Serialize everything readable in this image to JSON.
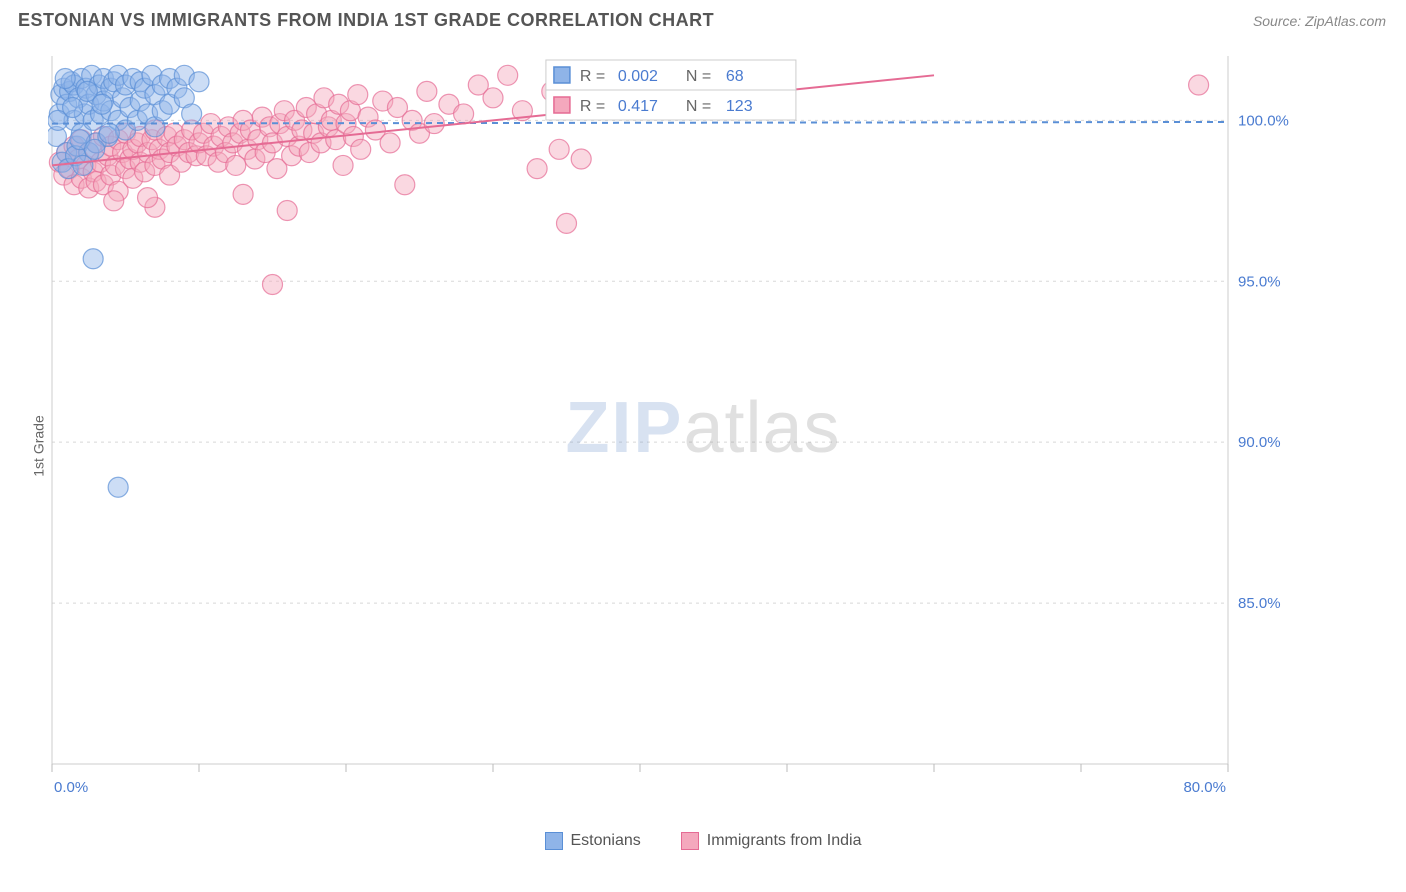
{
  "header": {
    "title": "ESTONIAN VS IMMIGRANTS FROM INDIA 1ST GRADE CORRELATION CHART",
    "source": "Source: ZipAtlas.com"
  },
  "y_axis_label": "1st Grade",
  "watermark": {
    "zip": "ZIP",
    "atlas": "atlas"
  },
  "chart": {
    "type": "scatter",
    "background_color": "#ffffff",
    "grid_color": "#d8d8d8",
    "axis_color": "#cccccc",
    "tick_color": "#bbbbbb",
    "tick_label_color": "#4a7bd0",
    "xlim": [
      0,
      80
    ],
    "ylim": [
      80,
      102
    ],
    "x_ticks": [
      0,
      10,
      20,
      30,
      40,
      50,
      60,
      70,
      80
    ],
    "x_tick_labels": [
      "0.0%",
      "",
      "",
      "",
      "",
      "",
      "",
      "",
      "80.0%"
    ],
    "y_ticks": [
      85,
      90,
      95,
      100
    ],
    "y_tick_labels": [
      "85.0%",
      "90.0%",
      "95.0%",
      "100.0%"
    ],
    "marker_radius": 10,
    "marker_opacity": 0.45,
    "series_a": {
      "name": "Estonians",
      "color_fill": "#8fb4e8",
      "color_stroke": "#5a8fd6",
      "R": "0.002",
      "N": "68",
      "trend": {
        "x1": 0,
        "y1": 99.9,
        "x2": 80,
        "y2": 99.95,
        "color": "#5a8fd6",
        "dash": "6 5",
        "width": 2
      },
      "points": [
        [
          0.3,
          99.5
        ],
        [
          0.5,
          100.2
        ],
        [
          0.6,
          100.8
        ],
        [
          0.8,
          101.0
        ],
        [
          1.0,
          100.5
        ],
        [
          1.0,
          99.0
        ],
        [
          1.2,
          100.9
        ],
        [
          1.3,
          101.2
        ],
        [
          1.5,
          100.0
        ],
        [
          1.5,
          101.1
        ],
        [
          1.7,
          99.2
        ],
        [
          1.8,
          100.7
        ],
        [
          2.0,
          101.3
        ],
        [
          2.0,
          99.6
        ],
        [
          2.2,
          100.2
        ],
        [
          2.3,
          101.0
        ],
        [
          2.5,
          100.5
        ],
        [
          2.5,
          99.0
        ],
        [
          2.7,
          101.4
        ],
        [
          2.8,
          100.0
        ],
        [
          3.0,
          100.8
        ],
        [
          3.0,
          99.3
        ],
        [
          3.2,
          101.1
        ],
        [
          3.3,
          100.2
        ],
        [
          3.5,
          101.3
        ],
        [
          3.5,
          100.6
        ],
        [
          3.8,
          99.5
        ],
        [
          4.0,
          101.0
        ],
        [
          4.0,
          100.3
        ],
        [
          4.2,
          101.2
        ],
        [
          4.5,
          100.0
        ],
        [
          4.5,
          101.4
        ],
        [
          4.8,
          100.7
        ],
        [
          5.0,
          101.1
        ],
        [
          5.0,
          99.7
        ],
        [
          5.3,
          100.4
        ],
        [
          5.5,
          101.3
        ],
        [
          5.8,
          100.0
        ],
        [
          6.0,
          101.2
        ],
        [
          6.0,
          100.6
        ],
        [
          6.3,
          101.0
        ],
        [
          6.5,
          100.2
        ],
        [
          6.8,
          101.4
        ],
        [
          7.0,
          100.8
        ],
        [
          7.0,
          99.8
        ],
        [
          7.5,
          101.1
        ],
        [
          7.5,
          100.3
        ],
        [
          8.0,
          101.3
        ],
        [
          8.0,
          100.5
        ],
        [
          8.5,
          101.0
        ],
        [
          9.0,
          100.7
        ],
        [
          9.0,
          101.4
        ],
        [
          9.5,
          100.2
        ],
        [
          10.0,
          101.2
        ],
        [
          2.8,
          95.7
        ],
        [
          4.5,
          88.6
        ],
        [
          0.7,
          98.7
        ],
        [
          1.1,
          98.5
        ],
        [
          1.6,
          98.9
        ],
        [
          2.1,
          98.6
        ],
        [
          0.4,
          100.0
        ],
        [
          0.9,
          101.3
        ],
        [
          1.4,
          100.4
        ],
        [
          1.9,
          99.4
        ],
        [
          2.4,
          100.9
        ],
        [
          2.9,
          99.1
        ],
        [
          3.4,
          100.5
        ],
        [
          3.9,
          99.6
        ]
      ]
    },
    "series_b": {
      "name": "Immigrants from India",
      "color_fill": "#f4a8bd",
      "color_stroke": "#e56b94",
      "R": "0.417",
      "N": "123",
      "trend": {
        "x1": 0,
        "y1": 98.6,
        "x2": 60,
        "y2": 101.4,
        "color": "#e56b94",
        "dash": "none",
        "width": 2
      },
      "points": [
        [
          0.5,
          98.7
        ],
        [
          0.8,
          98.3
        ],
        [
          1.0,
          99.0
        ],
        [
          1.2,
          98.5
        ],
        [
          1.5,
          98.0
        ],
        [
          1.5,
          99.2
        ],
        [
          1.8,
          98.8
        ],
        [
          2.0,
          98.2
        ],
        [
          2.0,
          99.4
        ],
        [
          2.3,
          98.6
        ],
        [
          2.5,
          99.0
        ],
        [
          2.5,
          97.9
        ],
        [
          2.8,
          98.4
        ],
        [
          3.0,
          99.3
        ],
        [
          3.0,
          98.1
        ],
        [
          3.3,
          98.7
        ],
        [
          3.5,
          99.5
        ],
        [
          3.5,
          98.0
        ],
        [
          3.8,
          98.9
        ],
        [
          4.0,
          99.2
        ],
        [
          4.0,
          98.3
        ],
        [
          4.3,
          98.6
        ],
        [
          4.5,
          99.4
        ],
        [
          4.5,
          97.8
        ],
        [
          4.8,
          99.0
        ],
        [
          5.0,
          98.5
        ],
        [
          5.0,
          99.6
        ],
        [
          5.3,
          98.8
        ],
        [
          5.5,
          99.1
        ],
        [
          5.5,
          98.2
        ],
        [
          5.8,
          99.3
        ],
        [
          6.0,
          98.7
        ],
        [
          6.0,
          99.5
        ],
        [
          6.3,
          98.4
        ],
        [
          6.5,
          99.0
        ],
        [
          6.8,
          99.4
        ],
        [
          7.0,
          98.6
        ],
        [
          7.0,
          99.7
        ],
        [
          7.3,
          99.1
        ],
        [
          7.5,
          98.8
        ],
        [
          7.8,
          99.5
        ],
        [
          8.0,
          99.0
        ],
        [
          8.0,
          98.3
        ],
        [
          8.3,
          99.6
        ],
        [
          8.5,
          99.2
        ],
        [
          8.8,
          98.7
        ],
        [
          9.0,
          99.4
        ],
        [
          9.3,
          99.0
        ],
        [
          9.5,
          99.7
        ],
        [
          9.8,
          98.9
        ],
        [
          10.0,
          99.3
        ],
        [
          10.3,
          99.6
        ],
        [
          10.5,
          98.9
        ],
        [
          10.8,
          99.9
        ],
        [
          11.0,
          99.2
        ],
        [
          11.3,
          98.7
        ],
        [
          11.5,
          99.5
        ],
        [
          11.8,
          99.0
        ],
        [
          12.0,
          99.8
        ],
        [
          12.3,
          99.3
        ],
        [
          12.5,
          98.6
        ],
        [
          12.8,
          99.6
        ],
        [
          13.0,
          100.0
        ],
        [
          13.3,
          99.1
        ],
        [
          13.5,
          99.7
        ],
        [
          13.8,
          98.8
        ],
        [
          14.0,
          99.4
        ],
        [
          14.3,
          100.1
        ],
        [
          14.5,
          99.0
        ],
        [
          14.8,
          99.8
        ],
        [
          15.0,
          99.3
        ],
        [
          15.3,
          98.5
        ],
        [
          15.5,
          99.9
        ],
        [
          15.8,
          100.3
        ],
        [
          16.0,
          99.5
        ],
        [
          16.3,
          98.9
        ],
        [
          16.5,
          100.0
        ],
        [
          16.8,
          99.2
        ],
        [
          17.0,
          99.7
        ],
        [
          17.3,
          100.4
        ],
        [
          17.5,
          99.0
        ],
        [
          17.8,
          99.6
        ],
        [
          18.0,
          100.2
        ],
        [
          18.3,
          99.3
        ],
        [
          18.5,
          100.7
        ],
        [
          18.8,
          99.8
        ],
        [
          19.0,
          100.0
        ],
        [
          19.3,
          99.4
        ],
        [
          19.5,
          100.5
        ],
        [
          19.8,
          98.6
        ],
        [
          20.0,
          99.9
        ],
        [
          20.3,
          100.3
        ],
        [
          20.5,
          99.5
        ],
        [
          20.8,
          100.8
        ],
        [
          21.0,
          99.1
        ],
        [
          21.5,
          100.1
        ],
        [
          22.0,
          99.7
        ],
        [
          22.5,
          100.6
        ],
        [
          23.0,
          99.3
        ],
        [
          23.5,
          100.4
        ],
        [
          24.0,
          98.0
        ],
        [
          24.5,
          100.0
        ],
        [
          25.0,
          99.6
        ],
        [
          25.5,
          100.9
        ],
        [
          26.0,
          99.9
        ],
        [
          27.0,
          100.5
        ],
        [
          28.0,
          100.2
        ],
        [
          29.0,
          101.1
        ],
        [
          30.0,
          100.7
        ],
        [
          31.0,
          101.4
        ],
        [
          32.0,
          100.3
        ],
        [
          33.0,
          98.5
        ],
        [
          34.0,
          100.9
        ],
        [
          34.5,
          99.1
        ],
        [
          35.0,
          96.8
        ],
        [
          36.0,
          98.8
        ],
        [
          16.0,
          97.2
        ],
        [
          15.0,
          94.9
        ],
        [
          7.0,
          97.3
        ],
        [
          13.0,
          97.7
        ],
        [
          78.0,
          101.1
        ],
        [
          4.2,
          97.5
        ],
        [
          6.5,
          97.6
        ]
      ]
    }
  },
  "stats_legend": {
    "box_stroke": "#cccccc",
    "box_fill": "#ffffff",
    "text_color_label": "#666666",
    "text_color_value": "#4a7bd0",
    "rows": [
      {
        "swatch_fill": "#8fb4e8",
        "swatch_stroke": "#5a8fd6",
        "R_label": "R =",
        "R_value": "0.002",
        "N_label": "N =",
        "N_value": "68"
      },
      {
        "swatch_fill": "#f4a8bd",
        "swatch_stroke": "#e56b94",
        "R_label": "R =",
        "R_value": "0.417",
        "N_label": "N =",
        "N_value": "123"
      }
    ]
  },
  "bottom_legend": {
    "items": [
      {
        "label": "Estonians",
        "fill": "#8fb4e8",
        "stroke": "#5a8fd6"
      },
      {
        "label": "Immigrants from India",
        "fill": "#f4a8bd",
        "stroke": "#e56b94"
      }
    ]
  }
}
